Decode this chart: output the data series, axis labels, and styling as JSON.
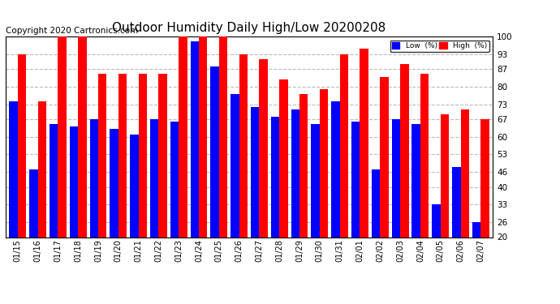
{
  "title": "Outdoor Humidity Daily High/Low 20200208",
  "copyright": "Copyright 2020 Cartronics.com",
  "dates": [
    "01/15",
    "01/16",
    "01/17",
    "01/18",
    "01/19",
    "01/20",
    "01/21",
    "01/22",
    "01/23",
    "01/24",
    "01/25",
    "01/26",
    "01/27",
    "01/28",
    "01/29",
    "01/30",
    "01/31",
    "02/01",
    "02/02",
    "02/03",
    "02/04",
    "02/05",
    "02/06",
    "02/07"
  ],
  "high": [
    93,
    74,
    100,
    100,
    85,
    85,
    85,
    85,
    100,
    100,
    100,
    93,
    91,
    83,
    77,
    79,
    93,
    95,
    84,
    89,
    85,
    69,
    71,
    67
  ],
  "low": [
    74,
    47,
    65,
    64,
    67,
    63,
    61,
    67,
    66,
    98,
    88,
    77,
    72,
    68,
    71,
    65,
    74,
    66,
    47,
    67,
    65,
    33,
    48,
    26
  ],
  "ylim": [
    20,
    100
  ],
  "yticks": [
    20,
    26,
    33,
    40,
    46,
    53,
    60,
    67,
    73,
    80,
    87,
    93,
    100
  ],
  "high_color": "#ff0000",
  "low_color": "#0000ff",
  "bg_color": "#ffffff",
  "grid_color": "#bbbbbb",
  "legend_low_label": "Low  (%)",
  "legend_high_label": "High  (%)",
  "title_fontsize": 11,
  "copyright_fontsize": 7.5
}
